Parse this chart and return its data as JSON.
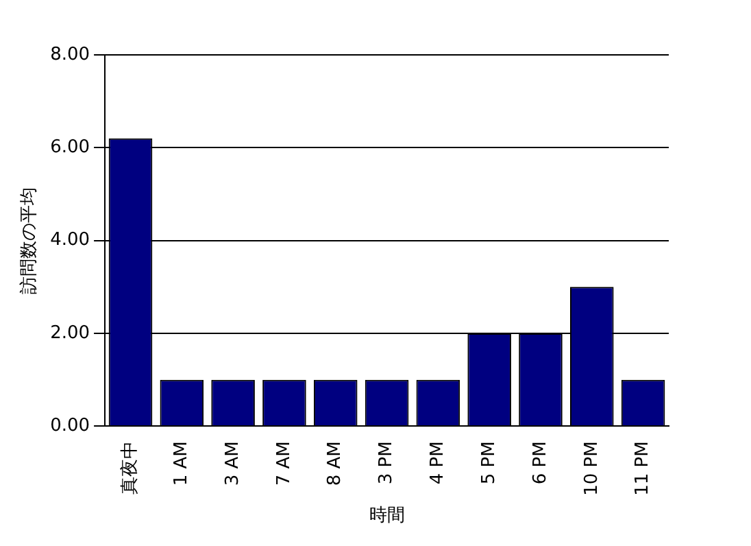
{
  "chart_data": {
    "type": "bar",
    "xlabel": "時間",
    "ylabel": "訪問数の平均",
    "categories": [
      "真夜中",
      "1 AM",
      "3 AM",
      "7 AM",
      "8 AM",
      "3 PM",
      "4 PM",
      "5 PM",
      "6 PM",
      "10 PM",
      "11 PM"
    ],
    "values": [
      6.2,
      1,
      1,
      1,
      1,
      1,
      1,
      2,
      2,
      3,
      1
    ],
    "color": "#000080",
    "ylim": [
      0,
      8
    ],
    "yticks": [
      {
        "value": 0,
        "label": "0.00"
      },
      {
        "value": 2,
        "label": "2.00"
      },
      {
        "value": 4,
        "label": "4.00"
      },
      {
        "value": 6,
        "label": "6.00"
      },
      {
        "value": 8,
        "label": "8.00"
      }
    ],
    "grid": "y"
  }
}
